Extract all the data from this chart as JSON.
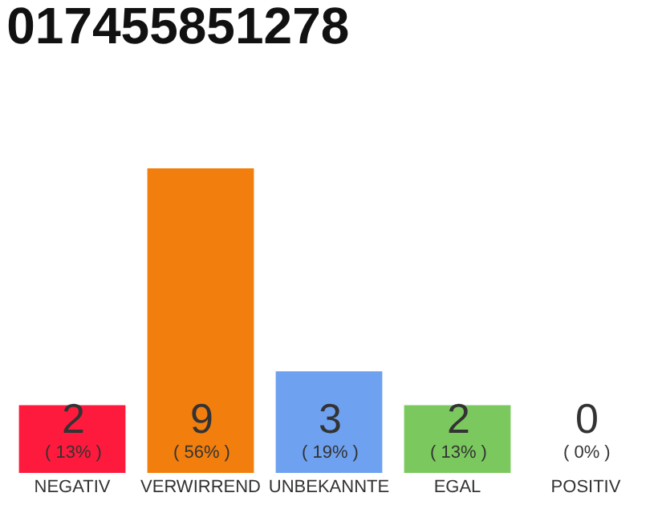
{
  "chart_data": {
    "type": "bar",
    "title": "017455851278",
    "categories": [
      "NEGATIV",
      "VERWIRREND",
      "UNBEKANNTE",
      "EGAL",
      "POSITIV"
    ],
    "values": [
      2,
      9,
      3,
      2,
      0
    ],
    "colors": [
      "#fe1a3d",
      "#f27e0d",
      "#6ea1f0",
      "#7bc95e",
      "#cccccc"
    ],
    "value_labels": [
      "2\n( 13% )",
      "9\n( 56% )",
      "3\n( 19% )",
      "2\n( 13% )",
      "0\n( 0% )"
    ],
    "grid": false,
    "legend": false
  }
}
